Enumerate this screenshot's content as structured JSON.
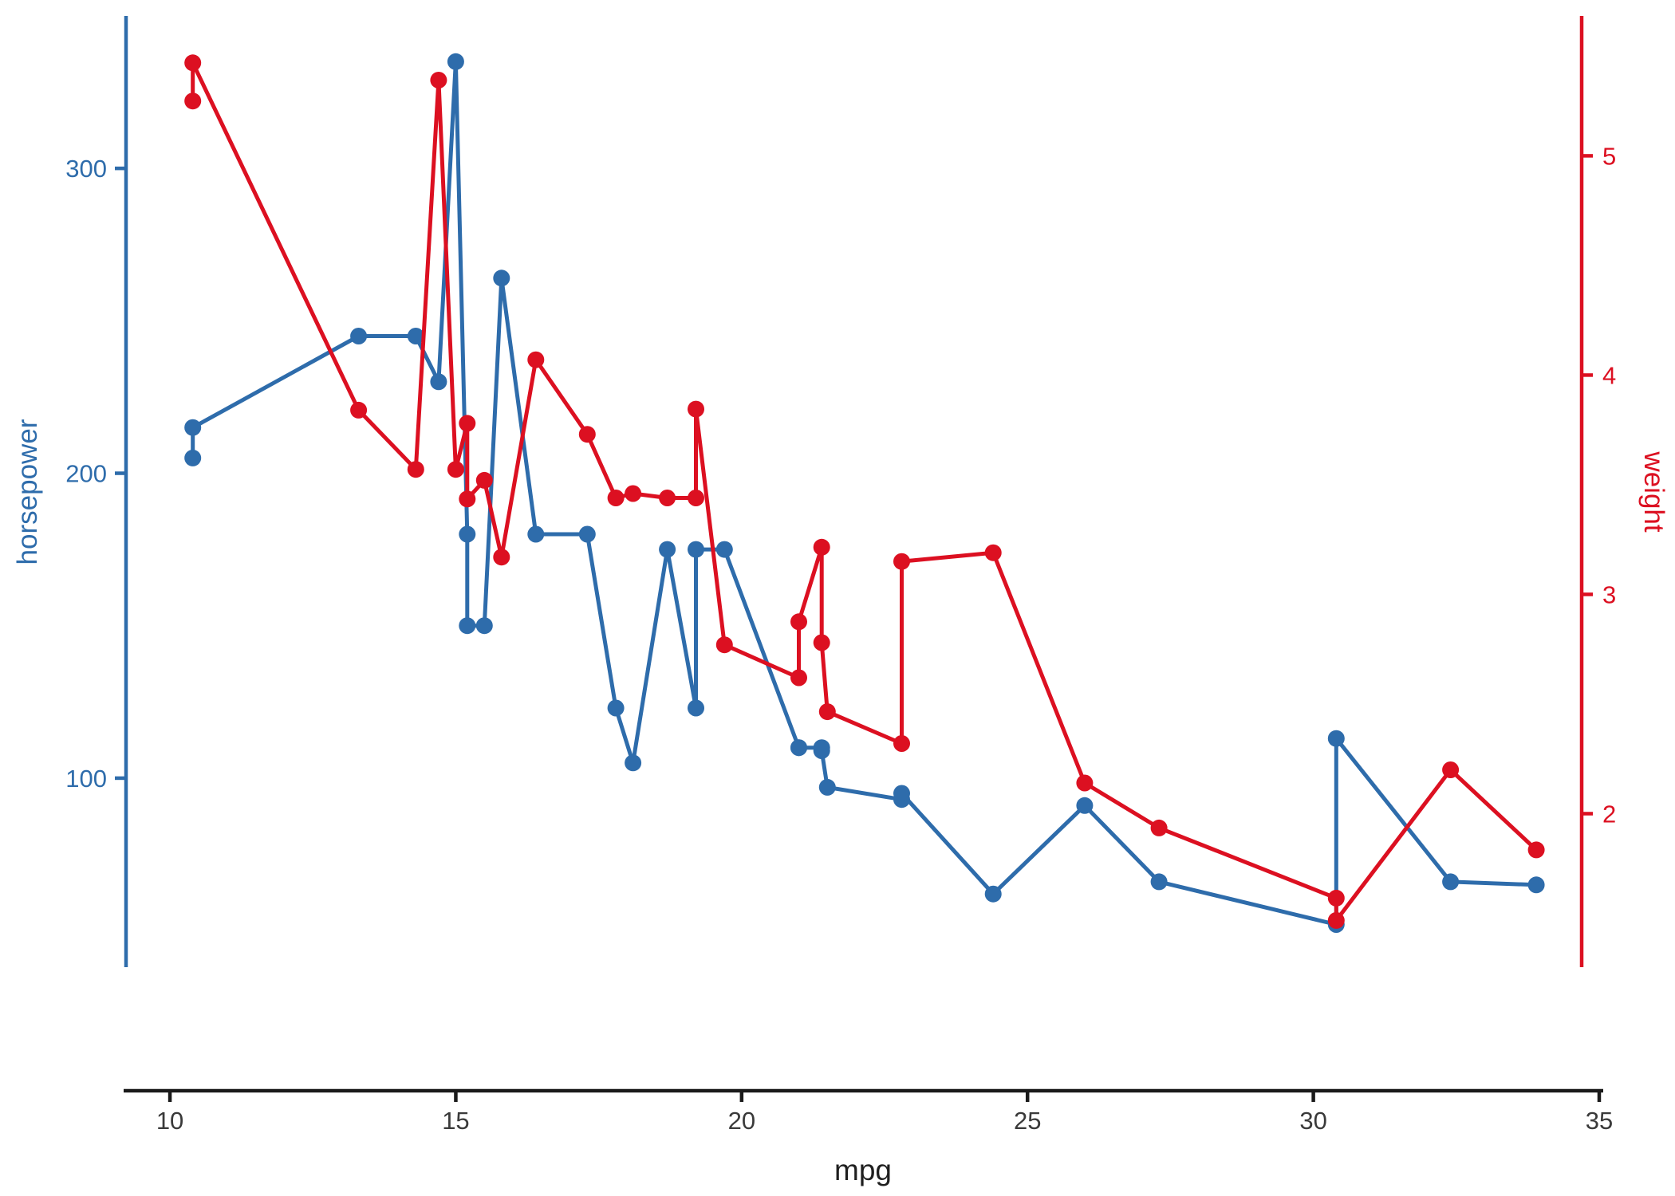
{
  "chart_data": {
    "type": "line",
    "title": "",
    "xlabel": "mpg",
    "x_ticks": [
      10,
      15,
      20,
      25,
      30,
      35
    ],
    "xlim": [
      9.19,
      35.07
    ],
    "grid": "off",
    "legend": "none",
    "left_axis": {
      "label": "horsepower",
      "color": "#2e6cab",
      "ticks": [
        100,
        200,
        300
      ],
      "lim": [
        38.0,
        351.3
      ]
    },
    "right_axis": {
      "label": "weight",
      "color": "#dc1021",
      "ticks": [
        2,
        3,
        4,
        5
      ],
      "lim": [
        1.3,
        5.656
      ]
    },
    "x_axis_color": "#1a1a1a",
    "x_tick_label_color": "#3a3a3a",
    "series": [
      {
        "name": "horsepower",
        "axis": "left",
        "color": "#2e6cab",
        "marker": "circle"
      },
      {
        "name": "weight",
        "axis": "right",
        "color": "#dc1021",
        "marker": "circle"
      }
    ],
    "points": [
      {
        "mpg": 10.4,
        "hp": 205,
        "wt": 5.25
      },
      {
        "mpg": 10.4,
        "hp": 215,
        "wt": 5.424
      },
      {
        "mpg": 13.3,
        "hp": 245,
        "wt": 3.84
      },
      {
        "mpg": 14.3,
        "hp": 245,
        "wt": 3.57
      },
      {
        "mpg": 14.7,
        "hp": 230,
        "wt": 5.345
      },
      {
        "mpg": 15.0,
        "hp": 335,
        "wt": 3.57
      },
      {
        "mpg": 15.2,
        "hp": 180,
        "wt": 3.78
      },
      {
        "mpg": 15.2,
        "hp": 150,
        "wt": 3.435
      },
      {
        "mpg": 15.5,
        "hp": 150,
        "wt": 3.52
      },
      {
        "mpg": 15.8,
        "hp": 264,
        "wt": 3.17
      },
      {
        "mpg": 16.4,
        "hp": 180,
        "wt": 4.07
      },
      {
        "mpg": 17.3,
        "hp": 180,
        "wt": 3.73
      },
      {
        "mpg": 17.8,
        "hp": 123,
        "wt": 3.44
      },
      {
        "mpg": 18.1,
        "hp": 105,
        "wt": 3.46
      },
      {
        "mpg": 18.7,
        "hp": 175,
        "wt": 3.44
      },
      {
        "mpg": 19.2,
        "hp": 123,
        "wt": 3.44
      },
      {
        "mpg": 19.2,
        "hp": 175,
        "wt": 3.845
      },
      {
        "mpg": 19.7,
        "hp": 175,
        "wt": 2.77
      },
      {
        "mpg": 21.0,
        "hp": 110,
        "wt": 2.62
      },
      {
        "mpg": 21.0,
        "hp": 110,
        "wt": 2.875
      },
      {
        "mpg": 21.4,
        "hp": 110,
        "wt": 3.215
      },
      {
        "mpg": 21.4,
        "hp": 109,
        "wt": 2.78
      },
      {
        "mpg": 21.5,
        "hp": 97,
        "wt": 2.465
      },
      {
        "mpg": 22.8,
        "hp": 93,
        "wt": 2.32
      },
      {
        "mpg": 22.8,
        "hp": 95,
        "wt": 3.15
      },
      {
        "mpg": 24.4,
        "hp": 62,
        "wt": 3.19
      },
      {
        "mpg": 26.0,
        "hp": 91,
        "wt": 2.14
      },
      {
        "mpg": 27.3,
        "hp": 66,
        "wt": 1.935
      },
      {
        "mpg": 30.4,
        "hp": 52,
        "wt": 1.615
      },
      {
        "mpg": 30.4,
        "hp": 113,
        "wt": 1.513
      },
      {
        "mpg": 32.4,
        "hp": 66,
        "wt": 2.2
      },
      {
        "mpg": 33.9,
        "hp": 65,
        "wt": 1.835
      }
    ]
  }
}
